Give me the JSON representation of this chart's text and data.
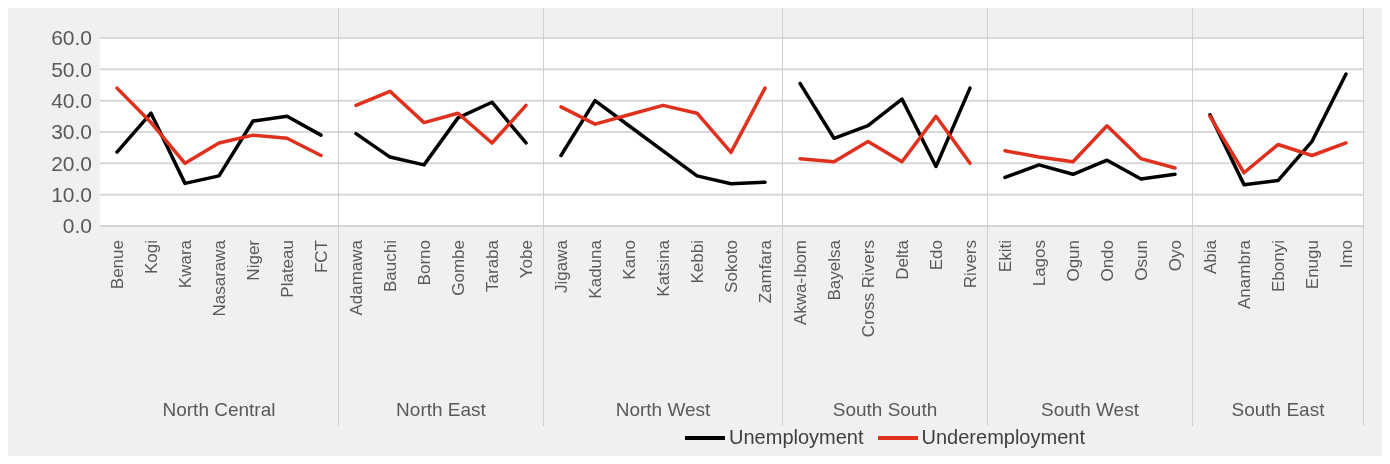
{
  "chart_data": [
    {
      "type": "line",
      "xlabel": "North Central",
      "categories": [
        "Benue",
        "Kogi",
        "Kwara",
        "Nasarawa",
        "Niger",
        "Plateau",
        "FCT"
      ],
      "ylim": [
        0,
        60
      ],
      "yticks": [
        {
          "value": 0,
          "label": "0.0"
        },
        {
          "value": 10,
          "label": "10.0"
        },
        {
          "value": 20,
          "label": "20.0"
        },
        {
          "value": 30,
          "label": "30.0"
        },
        {
          "value": 40,
          "label": "40.0"
        },
        {
          "value": 50,
          "label": "50.0"
        },
        {
          "value": 60,
          "label": "60.0"
        }
      ],
      "grid": "y",
      "legend": "bottom",
      "marker": "none",
      "line_style": "solid",
      "series": [
        {
          "name": "Unemployment",
          "color": "#000000",
          "values": [
            23.6,
            36.0,
            13.6,
            16.0,
            33.5,
            35.0,
            29.0
          ]
        },
        {
          "name": "Underemployment",
          "color": "#e0301e",
          "values": [
            44.0,
            33.0,
            20.0,
            26.5,
            29.0,
            28.0,
            22.5
          ]
        }
      ]
    },
    {
      "type": "line",
      "xlabel": "North East",
      "categories": [
        "Adamawa",
        "Bauchi",
        "Borno",
        "Gombe",
        "Taraba",
        "Yobe"
      ],
      "ylim": [
        0,
        60
      ],
      "yticks": [
        0,
        10,
        20,
        30,
        40,
        50,
        60
      ],
      "tick_labels": "x",
      "grid": "y",
      "marker": "none",
      "line_style": "solid",
      "series": [
        {
          "color": "#000000",
          "values": [
            29.5,
            22.0,
            19.5,
            34.5,
            39.5,
            26.5
          ]
        },
        {
          "color": "#e0301e",
          "values": [
            38.5,
            43.0,
            33.0,
            36.0,
            26.5,
            38.5
          ]
        }
      ]
    },
    {
      "type": "line",
      "xlabel": "North West",
      "categories": [
        "Jigawa",
        "Kaduna",
        "Kano",
        "Katsina",
        "Kebbi",
        "Sokoto",
        "Zamfara"
      ],
      "ylim": [
        0,
        60
      ],
      "yticks": [
        0,
        10,
        20,
        30,
        40,
        50,
        60
      ],
      "tick_labels": "x",
      "grid": "y",
      "marker": "none",
      "line_style": "solid",
      "series": [
        {
          "color": "#000000",
          "values": [
            22.5,
            40.0,
            32.0,
            24.0,
            16.0,
            13.5,
            14.0
          ]
        },
        {
          "color": "#e0301e",
          "values": [
            38.0,
            32.5,
            35.5,
            38.5,
            36.0,
            23.5,
            44.0
          ]
        }
      ]
    },
    {
      "type": "line",
      "xlabel": "South South",
      "categories": [
        "Akwa-Ibom",
        "Bayelsa",
        "Cross Rivers",
        "Delta",
        "Edo",
        "Rivers"
      ],
      "ylim": [
        0,
        60
      ],
      "yticks": [
        0,
        10,
        20,
        30,
        40,
        50,
        60
      ],
      "tick_labels": "x",
      "grid": "y",
      "marker": "none",
      "line_style": "solid",
      "series": [
        {
          "color": "#000000",
          "values": [
            45.5,
            28.0,
            32.0,
            40.5,
            19.0,
            44.0
          ]
        },
        {
          "color": "#e0301e",
          "values": [
            21.5,
            20.5,
            27.0,
            20.5,
            35.0,
            20.0
          ]
        }
      ]
    },
    {
      "type": "line",
      "xlabel": "South West",
      "categories": [
        "Ekiti",
        "Lagos",
        "Ogun",
        "Ondo",
        "Osun",
        "Oyo"
      ],
      "ylim": [
        0,
        60
      ],
      "yticks": [
        0,
        10,
        20,
        30,
        40,
        50,
        60
      ],
      "tick_labels": "x",
      "grid": "y",
      "marker": "none",
      "line_style": "solid",
      "series": [
        {
          "color": "#000000",
          "values": [
            15.5,
            19.5,
            16.5,
            21.0,
            15.0,
            16.5
          ]
        },
        {
          "color": "#e0301e",
          "values": [
            24.0,
            22.0,
            20.5,
            32.0,
            21.5,
            18.5
          ]
        }
      ]
    },
    {
      "type": "line",
      "xlabel": "South East",
      "categories": [
        "Abia",
        "Anambra",
        "Ebonyi",
        "Enugu",
        "Imo"
      ],
      "ylim": [
        0,
        60
      ],
      "yticks": [
        0,
        10,
        20,
        30,
        40,
        50,
        60
      ],
      "tick_labels": "x",
      "grid": "y",
      "marker": "none",
      "line_style": "solid",
      "series": [
        {
          "color": "#000000",
          "values": [
            35.5,
            13.2,
            14.5,
            27.0,
            48.5
          ]
        },
        {
          "color": "#e0301e",
          "values": [
            35.0,
            17.0,
            26.0,
            22.5,
            26.5
          ]
        }
      ]
    }
  ]
}
